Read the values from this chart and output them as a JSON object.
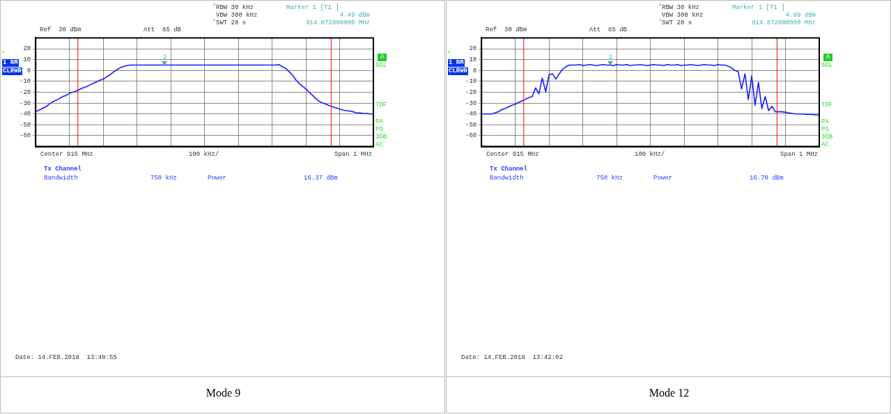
{
  "chart_data": [
    {
      "type": "line",
      "categories": [
        null,
        null,
        null,
        null,
        null,
        null,
        null,
        null,
        null,
        null,
        null,
        null,
        null,
        null,
        null,
        null,
        null,
        null,
        null,
        null,
        null,
        null,
        null,
        null,
        null,
        null,
        null,
        null,
        null,
        null,
        null,
        null,
        null,
        null,
        null,
        null,
        null,
        null,
        null,
        null,
        null,
        null,
        null,
        null,
        null,
        null,
        null,
        null,
        null,
        null,
        null,
        null,
        null,
        null,
        null,
        null,
        null,
        null,
        null,
        null,
        null,
        null,
        null,
        null,
        null,
        null,
        null,
        null,
        null,
        null,
        null,
        null,
        null,
        null,
        null,
        null,
        null,
        null,
        null,
        null,
        null,
        null,
        null,
        null,
        null,
        null,
        null,
        null,
        null,
        null,
        null,
        null,
        null,
        null,
        null,
        null,
        null,
        null,
        null,
        null,
        null
      ],
      "series": [
        {
          "color": "#1a1aff",
          "values": [
            -38,
            -36.5,
            -35,
            -33.5,
            -31,
            -29,
            -27.5,
            -26,
            -24,
            -23,
            -21,
            -20,
            -19,
            -17.5,
            -16,
            -15,
            -13.5,
            -12,
            -10.5,
            -9,
            -8,
            -6,
            -4,
            -1.5,
            0.5,
            2.5,
            3.5,
            4.5,
            5,
            5,
            5,
            5,
            5,
            5,
            5,
            5,
            5,
            5,
            5,
            5,
            5,
            5,
            5,
            5,
            5,
            5,
            5,
            5,
            5,
            5,
            5,
            5,
            5,
            5,
            5,
            5,
            5,
            5,
            5,
            5,
            5,
            5,
            5,
            5,
            5,
            5,
            5,
            5,
            5,
            5,
            5,
            5,
            5.5,
            3.5,
            2,
            -1,
            -4,
            -8.5,
            -12,
            -14.5,
            -17,
            -20,
            -23,
            -26,
            -28.5,
            -30,
            -31,
            -32.5,
            -33.5,
            -34.5,
            -35.5,
            -36.5,
            -37,
            -37.5,
            -38,
            -39,
            -39,
            -39.5,
            -39.5,
            -40,
            -40
          ]
        }
      ],
      "ylim": [
        -70,
        30
      ],
      "yticks": [
        -60,
        -50,
        -40,
        -30,
        -20,
        -10,
        0,
        10,
        20
      ],
      "tick_labels": "y",
      "grid": true,
      "marker": "none",
      "line_style": "solid",
      "legend": false,
      "annotations": [
        "*",
        "RBW 30 kHz",
        "VBW 300 kHz",
        "*",
        "SWT 20 s",
        "Marker 1 [T1 ]",
        "4.49 dBm",
        "914.872000000 MHz",
        "Ref  30 dBm",
        "Att  65 dB",
        "1 RM",
        "*",
        "CLRWR",
        "A",
        "SGL",
        "TDF",
        "PA",
        "PS",
        "3DB",
        "AC",
        "Center 915 MHz",
        "100 kHz/",
        "Span 1 MHz",
        "Tx Channel",
        "Bandwidth",
        "750 kHz",
        "Power",
        "16.37 dBm",
        "Date: 14.FEB.2018  13:40:55",
        "Mode 9",
        "1"
      ]
    },
    {
      "type": "line",
      "categories": [
        null,
        null,
        null,
        null,
        null,
        null,
        null,
        null,
        null,
        null,
        null,
        null,
        null,
        null,
        null,
        null,
        null,
        null,
        null,
        null,
        null,
        null,
        null,
        null,
        null,
        null,
        null,
        null,
        null,
        null,
        null,
        null,
        null,
        null,
        null,
        null,
        null,
        null,
        null,
        null,
        null,
        null,
        null,
        null,
        null,
        null,
        null,
        null,
        null,
        null,
        null,
        null,
        null,
        null,
        null,
        null,
        null,
        null,
        null,
        null,
        null,
        null,
        null,
        null,
        null,
        null,
        null,
        null,
        null,
        null,
        null,
        null,
        null,
        null,
        null,
        null,
        null,
        null,
        null,
        null,
        null,
        null,
        null,
        null,
        null,
        null,
        null,
        null,
        null,
        null,
        null,
        null,
        null,
        null,
        null,
        null,
        null,
        null,
        null,
        null,
        null
      ],
      "series": [
        {
          "color": "#1a1aff",
          "values": [
            -40,
            -40,
            -40,
            -40,
            -39,
            -38,
            -36,
            -35,
            -33.5,
            -32,
            -31,
            -29.5,
            -28,
            -26.5,
            -25,
            -24,
            -16,
            -21.5,
            -7,
            -19.5,
            -4,
            -3,
            -8,
            -3,
            1,
            3.5,
            5,
            5,
            5,
            5.5,
            4.5,
            5,
            5.5,
            5,
            4.5,
            5,
            5.5,
            5,
            5,
            4.5,
            5.5,
            5,
            5,
            5.5,
            4.5,
            5,
            5,
            5.5,
            5,
            4.5,
            5,
            5.5,
            5,
            5,
            4.5,
            5.5,
            5,
            5,
            5.5,
            4.5,
            5,
            5,
            5.5,
            5,
            4.5,
            5,
            5.5,
            5,
            5,
            4.5,
            5.5,
            5,
            5,
            4,
            2.5,
            0,
            -1,
            -17,
            -3,
            -27,
            -5,
            -32,
            -11,
            -35,
            -24,
            -37,
            -33,
            -38,
            -38,
            -38,
            -38.5,
            -39,
            -39.5,
            -40,
            -40,
            -40,
            -40.5,
            -40.5,
            -40.5,
            -41,
            -41
          ]
        }
      ],
      "ylim": [
        -70,
        30
      ],
      "yticks": [
        -60,
        -50,
        -40,
        -30,
        -20,
        -10,
        0,
        10,
        20
      ],
      "tick_labels": "y",
      "grid": true,
      "marker": "none",
      "line_style": "solid",
      "legend": false,
      "annotations": [
        "*",
        "RBW 30 kHz",
        "VBW 300 kHz",
        "*",
        "SWT 20 s",
        "Marker 1 [T1 ]",
        "4.99 dBm",
        "914.872000000 MHz",
        "Ref  30 dBm",
        "Att  65 dB",
        "1 RM",
        "*",
        "CLRWR",
        "A",
        "SGL",
        "TDF",
        "PA",
        "PS",
        "3DB",
        "AC",
        "Center 915 MHz",
        "100 kHz/",
        "Span 1 MHz",
        "Tx Channel",
        "Bandwidth",
        "750 kHz",
        "Power",
        "16.70 dBm",
        "Date: 14.FEB.2018  13:42:02",
        "Mode 12",
        "1"
      ]
    }
  ]
}
